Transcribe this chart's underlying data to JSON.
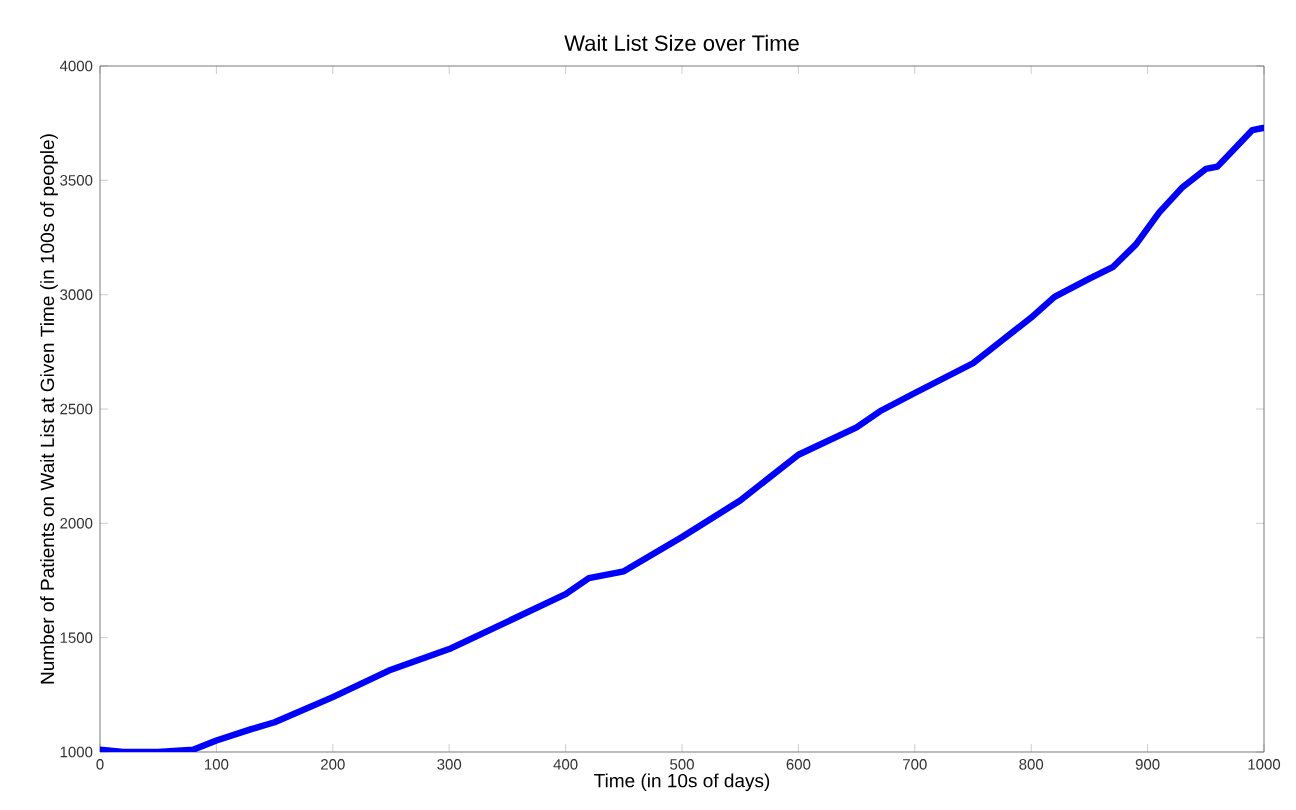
{
  "chart_data": {
    "type": "line",
    "title": "Wait List Size over Time",
    "xlabel": "Time (in 10s of days)",
    "ylabel": "Number of Patients on Wait List at Given Time (in 100s of people)",
    "x": [
      0,
      20,
      50,
      80,
      100,
      130,
      150,
      200,
      250,
      300,
      350,
      400,
      420,
      450,
      500,
      550,
      600,
      650,
      670,
      700,
      750,
      780,
      800,
      820,
      850,
      870,
      890,
      910,
      930,
      950,
      960,
      990,
      1000
    ],
    "series": [
      {
        "color": "#0000ff",
        "values": [
          1010,
          1000,
          1000,
          1010,
          1050,
          1100,
          1130,
          1240,
          1360,
          1450,
          1570,
          1690,
          1760,
          1790,
          1940,
          2100,
          2300,
          2420,
          2490,
          2570,
          2700,
          2820,
          2900,
          2990,
          3070,
          3120,
          3220,
          3360,
          3470,
          3550,
          3560,
          3720,
          3730
        ]
      }
    ],
    "xlim": [
      0,
      1000
    ],
    "ylim": [
      1000,
      4000
    ],
    "xticks": [
      0,
      100,
      200,
      300,
      400,
      500,
      600,
      700,
      800,
      900,
      1000
    ],
    "yticks": [
      1000,
      1500,
      2000,
      2500,
      3000,
      3500,
      4000
    ],
    "grid": false
  }
}
